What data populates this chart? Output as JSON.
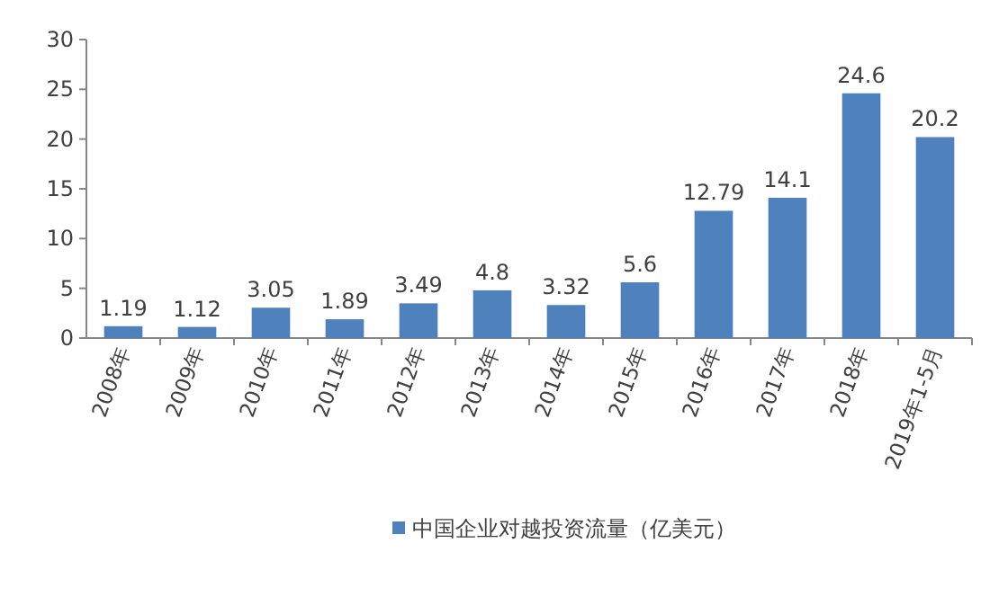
{
  "chart_data": {
    "type": "bar",
    "categories": [
      "2008年",
      "2009年",
      "2010年",
      "2011年",
      "2012年",
      "2013年",
      "2014年",
      "2015年",
      "2016年",
      "2017年",
      "2018年",
      "2019年1-5月"
    ],
    "series": [
      {
        "name": "中国企业对越投资流量（亿美元）",
        "color": "#4f81bd",
        "values": [
          1.19,
          1.12,
          3.05,
          1.89,
          3.49,
          4.8,
          3.32,
          5.6,
          12.79,
          14.1,
          24.6,
          20.2
        ]
      }
    ],
    "ylim": [
      0,
      30
    ],
    "yticks": [
      0,
      5,
      10,
      15,
      20,
      25,
      30
    ],
    "data_labels": true,
    "legend": "bottom"
  }
}
